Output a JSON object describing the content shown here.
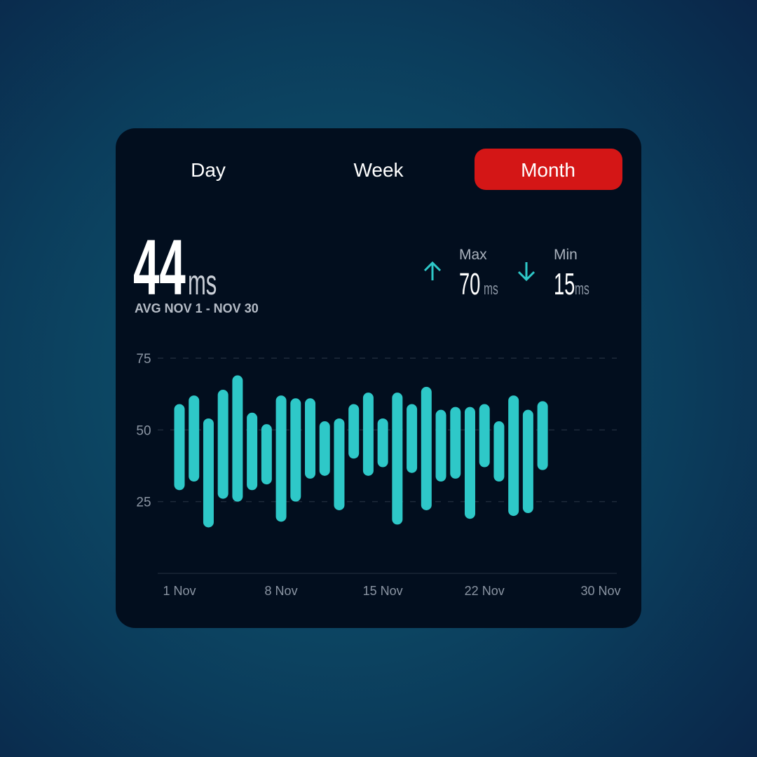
{
  "tabs": {
    "items": [
      "Day",
      "Week",
      "Month"
    ],
    "active": 2
  },
  "summary": {
    "value": "44",
    "unit": "ms",
    "caption": "AVG NOV 1 - NOV 30",
    "max": {
      "label": "Max",
      "value": "70",
      "unit": "ms"
    },
    "min": {
      "label": "Min",
      "value": "15",
      "unit": "ms"
    }
  },
  "chart_data": {
    "type": "range_bar",
    "color": "#2ec8c8",
    "x": [
      1,
      2,
      3,
      4,
      5,
      6,
      7,
      8,
      9,
      10,
      11,
      12,
      13,
      14,
      15,
      16,
      17,
      18,
      19,
      20,
      21,
      22,
      23,
      24,
      25,
      26
    ],
    "high": [
      59,
      62,
      54,
      64,
      69,
      56,
      52,
      62,
      61,
      61,
      53,
      54,
      59,
      63,
      54,
      63,
      59,
      65,
      57,
      58,
      58,
      59,
      53,
      62,
      57,
      60
    ],
    "low": [
      29,
      32,
      16,
      26,
      25,
      29,
      31,
      18,
      25,
      33,
      34,
      22,
      40,
      34,
      37,
      17,
      35,
      22,
      32,
      33,
      19,
      37,
      32,
      20,
      21,
      36
    ],
    "xlim": [
      1,
      30
    ],
    "xticks": [
      {
        "value": 1,
        "label": "1 Nov"
      },
      {
        "value": 8,
        "label": "8 Nov"
      },
      {
        "value": 15,
        "label": "15 Nov"
      },
      {
        "value": 22,
        "label": "22 Nov"
      },
      {
        "value": 30,
        "label": "30 Nov"
      }
    ],
    "ylim": [
      0,
      75
    ],
    "yticks": [
      25,
      50,
      75
    ],
    "grid": true
  }
}
